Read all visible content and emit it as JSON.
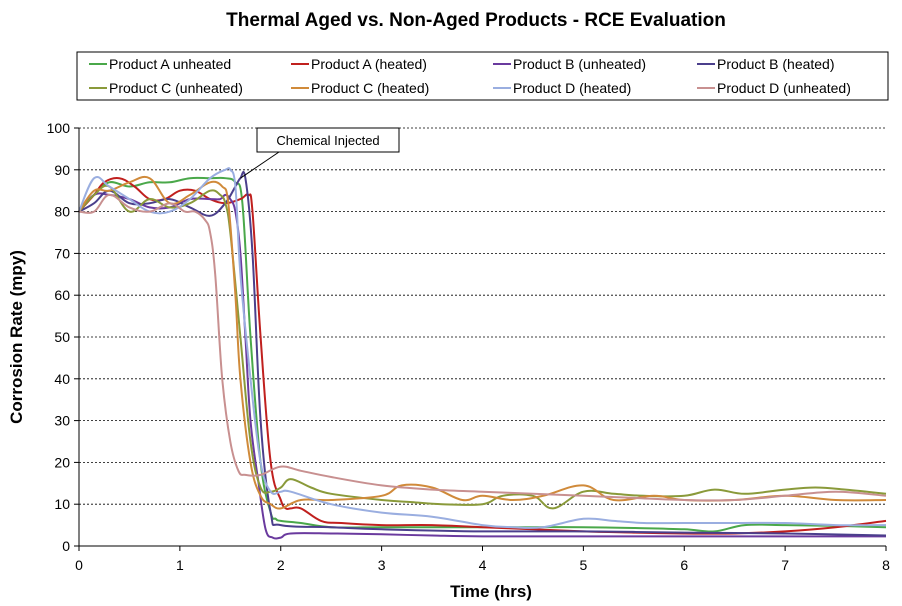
{
  "chart_data": {
    "type": "line",
    "title": "Thermal Aged vs. Non-Aged Products - RCE Evaluation",
    "xlabel": "Time (hrs)",
    "ylabel": "Corrosion Rate (mpy)",
    "xlim": [
      0,
      8
    ],
    "ylim": [
      0,
      100
    ],
    "xticks": [
      0,
      1,
      2,
      3,
      4,
      5,
      6,
      7,
      8
    ],
    "yticks": [
      0,
      10,
      20,
      30,
      40,
      50,
      60,
      70,
      80,
      90,
      100
    ],
    "grid": "horizontal-dashed",
    "legend_position": "top",
    "annotation": {
      "text": "Chemical Injected",
      "x": 1.6,
      "y": 88
    },
    "series": [
      {
        "name": "Product A unheated",
        "color": "#4aa84a",
        "x": [
          0,
          0.15,
          0.3,
          0.5,
          0.7,
          0.9,
          1.1,
          1.3,
          1.45,
          1.55,
          1.62,
          1.7,
          1.8,
          1.9,
          1.95,
          2.0,
          2.2,
          2.5,
          3.0,
          3.5,
          4.0,
          4.5,
          5.0,
          5.5,
          6.0,
          6.3,
          6.6,
          7.0,
          7.5,
          8.0
        ],
        "y": [
          80,
          84,
          87,
          86,
          87,
          87,
          88,
          88,
          88,
          87,
          82,
          50,
          20,
          8,
          6.5,
          6,
          5.5,
          4.5,
          4.5,
          4.5,
          4.5,
          4.5,
          4.5,
          4.3,
          4,
          3.5,
          5,
          5,
          4.8,
          4.5
        ]
      },
      {
        "name": "Product A (heated)",
        "color": "#c0201e",
        "x": [
          0,
          0.15,
          0.25,
          0.4,
          0.55,
          0.7,
          0.85,
          1.0,
          1.15,
          1.3,
          1.45,
          1.6,
          1.68,
          1.72,
          1.8,
          1.9,
          2.0,
          2.05,
          2.1,
          2.2,
          2.4,
          2.6,
          3.0,
          3.5,
          4.0,
          4.5,
          5.0,
          5.5,
          6.0,
          6.5,
          7.0,
          7.5,
          8.0
        ],
        "y": [
          80,
          84,
          87,
          88,
          86,
          83,
          83,
          85,
          85,
          83,
          82,
          83,
          84,
          80,
          50,
          20,
          11,
          9,
          9,
          9,
          6,
          5.5,
          5,
          5,
          4.5,
          4,
          3.5,
          3.2,
          3,
          3,
          3.5,
          4.5,
          6
        ]
      },
      {
        "name": "Product B (unheated)",
        "color": "#6a3a9e",
        "x": [
          0,
          0.15,
          0.3,
          0.5,
          0.7,
          0.9,
          1.1,
          1.3,
          1.4,
          1.45,
          1.5,
          1.55,
          1.6,
          1.65,
          1.7,
          1.78,
          1.85,
          1.92,
          2.0,
          2.1,
          2.5,
          3.0,
          3.5,
          4.0,
          5.0,
          6.0,
          7.0,
          8.0
        ],
        "y": [
          80,
          84,
          84,
          83,
          81,
          81,
          83,
          83,
          83,
          84,
          83,
          80,
          70,
          50,
          30,
          15,
          4,
          2,
          2,
          3,
          3,
          2.8,
          2.5,
          2.3,
          2.3,
          2.3,
          2.3,
          2.3
        ]
      },
      {
        "name": "Product B (heated)",
        "color": "#4b3f8c",
        "x": [
          0,
          0.15,
          0.3,
          0.5,
          0.7,
          0.9,
          1.1,
          1.3,
          1.45,
          1.55,
          1.6,
          1.65,
          1.72,
          1.8,
          1.9,
          2.0,
          2.5,
          3.0,
          4.0,
          5.0,
          6.0,
          7.0,
          8.0
        ],
        "y": [
          80,
          82,
          85,
          82,
          82,
          83,
          81,
          79,
          82,
          86,
          88,
          88,
          70,
          30,
          8,
          5,
          4.5,
          4,
          3.5,
          3.5,
          3.2,
          3,
          2.5
        ]
      },
      {
        "name": "Product C (unheated)",
        "color": "#8a9a3a",
        "x": [
          0,
          0.15,
          0.3,
          0.5,
          0.7,
          0.9,
          1.1,
          1.3,
          1.4,
          1.45,
          1.5,
          1.6,
          1.7,
          1.8,
          1.9,
          2.0,
          2.1,
          2.3,
          2.5,
          3.0,
          3.3,
          3.6,
          4.0,
          4.2,
          4.5,
          4.7,
          5.0,
          5.3,
          5.6,
          6.0,
          6.3,
          6.6,
          7.0,
          7.3,
          7.6,
          8.0
        ],
        "y": [
          80,
          84,
          86,
          80,
          83,
          81,
          82,
          85,
          84,
          82,
          75,
          50,
          25,
          14,
          13,
          14,
          16,
          14,
          12.5,
          11,
          10.5,
          10,
          10,
          12,
          12,
          9,
          13,
          12.5,
          12,
          12,
          13.5,
          12.5,
          13.5,
          14,
          13.5,
          12.5
        ]
      },
      {
        "name": "Product C (heated)",
        "color": "#d08a3a",
        "x": [
          0,
          0.15,
          0.3,
          0.5,
          0.7,
          0.9,
          1.1,
          1.3,
          1.42,
          1.48,
          1.55,
          1.6,
          1.7,
          1.8,
          1.9,
          2.0,
          2.2,
          2.5,
          3.0,
          3.2,
          3.5,
          3.8,
          4.0,
          4.3,
          4.6,
          5.0,
          5.3,
          5.7,
          6.0,
          6.5,
          7.0,
          7.5,
          8.0
        ],
        "y": [
          80,
          85,
          85,
          87,
          88,
          82,
          84,
          87,
          86,
          82,
          60,
          40,
          20,
          12,
          10,
          9,
          11,
          11,
          12,
          14.5,
          14,
          11,
          12,
          11,
          12,
          14.5,
          11,
          12,
          11,
          11,
          12,
          11,
          11
        ]
      },
      {
        "name": "Product D (heated)",
        "color": "#9aaee0",
        "x": [
          0,
          0.15,
          0.3,
          0.5,
          0.7,
          0.9,
          1.1,
          1.3,
          1.45,
          1.5,
          1.55,
          1.6,
          1.7,
          1.8,
          1.9,
          2.0,
          2.1,
          2.5,
          3.0,
          3.5,
          4.0,
          4.3,
          4.6,
          5.0,
          5.3,
          5.6,
          6.0,
          6.5,
          7.0,
          7.5,
          8.0
        ],
        "y": [
          80,
          88,
          86,
          83,
          80,
          80,
          83,
          88,
          90,
          90,
          86,
          65,
          40,
          20,
          13,
          13,
          13,
          10,
          8,
          7,
          5,
          4.5,
          4.5,
          6.5,
          6,
          5.5,
          5.5,
          5.5,
          5.5,
          5,
          5
        ]
      },
      {
        "name": "Product D (unheated)",
        "color": "#c89090",
        "x": [
          0,
          0.15,
          0.3,
          0.5,
          0.7,
          0.9,
          1.05,
          1.15,
          1.25,
          1.3,
          1.35,
          1.42,
          1.5,
          1.58,
          1.65,
          1.8,
          2.0,
          2.2,
          2.5,
          3.0,
          3.5,
          4.0,
          4.5,
          5.0,
          5.5,
          6.0,
          6.5,
          7.0,
          7.5,
          8.0
        ],
        "y": [
          80,
          80,
          84,
          81,
          80,
          82,
          80,
          80,
          78,
          75,
          65,
          40,
          25,
          18,
          17,
          17,
          19,
          18,
          16.5,
          14.5,
          13.5,
          13,
          12.5,
          12,
          11.5,
          11,
          11,
          12,
          13,
          12
        ]
      }
    ]
  }
}
